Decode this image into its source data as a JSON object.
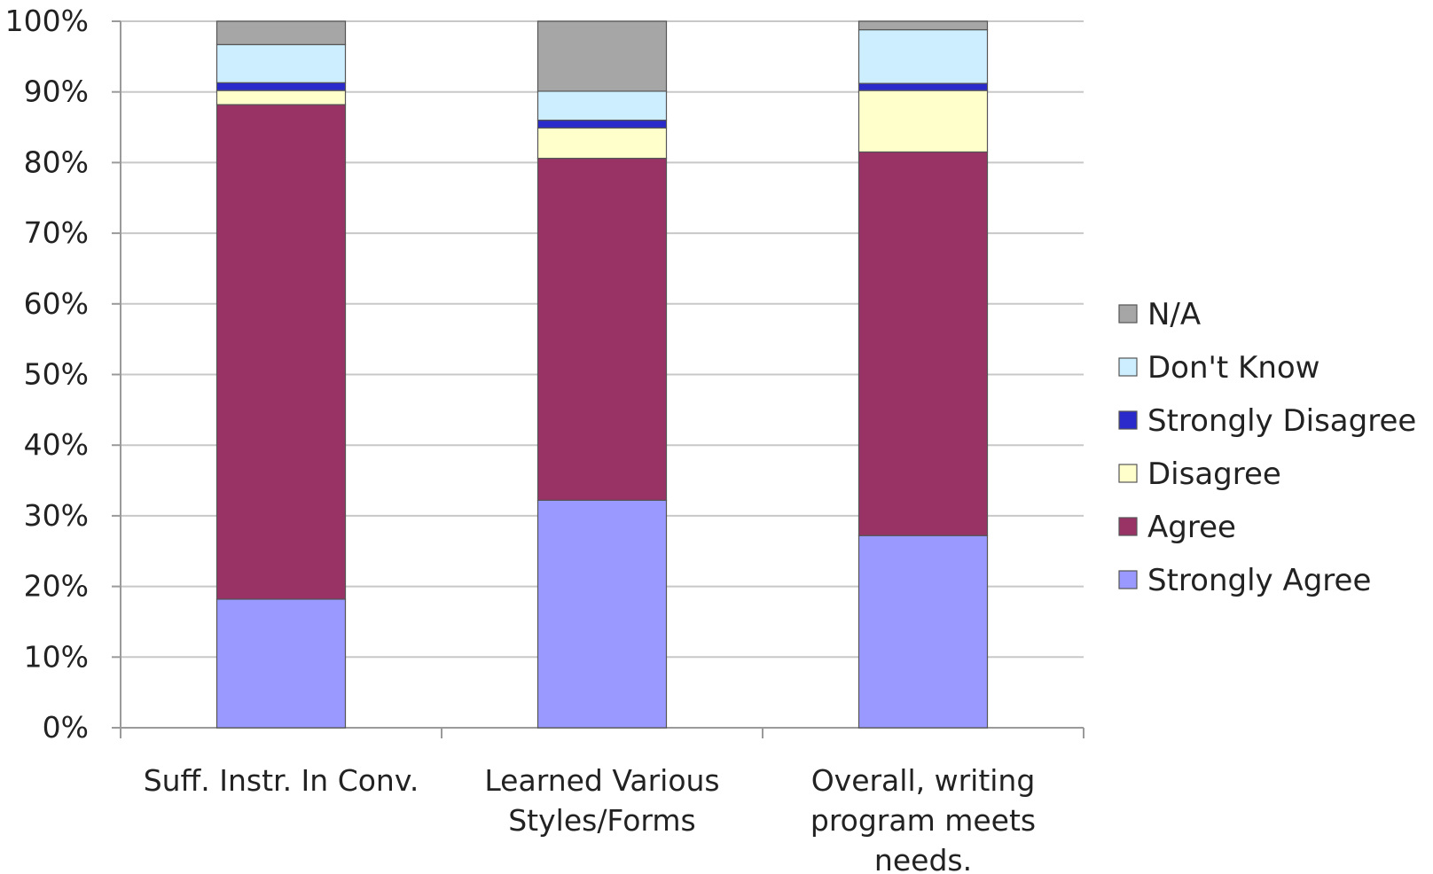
{
  "chart_data": {
    "type": "bar",
    "stacked": true,
    "normalized": true,
    "categories": [
      [
        "Suff. Instr. In Conv."
      ],
      [
        "Learned Various",
        "Styles/Forms"
      ],
      [
        "Overall, writing",
        "program meets",
        "needs."
      ]
    ],
    "series": [
      {
        "name": "Strongly Agree",
        "color": "#9999ff",
        "values": [
          18.2,
          32.2,
          27.2
        ]
      },
      {
        "name": "Agree",
        "color": "#993366",
        "values": [
          70.0,
          48.4,
          54.3
        ]
      },
      {
        "name": "Disagree",
        "color": "#ffffcc",
        "values": [
          2.0,
          4.3,
          8.7
        ]
      },
      {
        "name": "Strongly Disagree",
        "color": "#2b2bcc",
        "values": [
          1.1,
          1.1,
          1.0
        ]
      },
      {
        "name": "Don't Know",
        "color": "#cceeff",
        "values": [
          5.4,
          4.1,
          7.6
        ]
      },
      {
        "name": "N/A",
        "color": "#a6a6a6",
        "values": [
          3.3,
          9.9,
          1.2
        ]
      }
    ],
    "yticks": [
      "0%",
      "10%",
      "20%",
      "30%",
      "40%",
      "50%",
      "60%",
      "70%",
      "80%",
      "90%",
      "100%"
    ],
    "ylim": [
      0,
      100
    ],
    "grid": true,
    "legend": "right",
    "legend_order": [
      "N/A",
      "Don't Know",
      "Strongly Disagree",
      "Disagree",
      "Agree",
      "Strongly Agree"
    ]
  }
}
